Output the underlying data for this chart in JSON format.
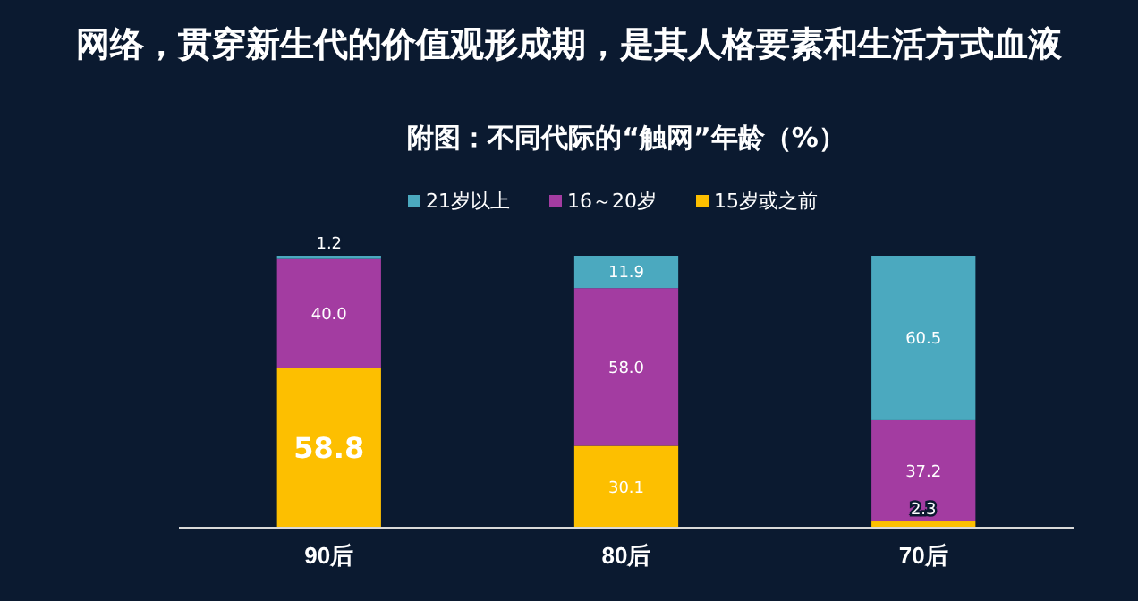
{
  "chart_data": {
    "type": "bar",
    "title": "网络，贯穿新生代的价值观形成期，是其人格要素和生活方式血液",
    "subtitle": "附图：不同代际的“触网”年龄（%）",
    "categories": [
      "90后",
      "80后",
      "70后"
    ],
    "stacked": true,
    "legend": "top",
    "series": [
      {
        "name": "15岁或之前",
        "color": "#fdbf00",
        "values": [
          58.8,
          30.1,
          2.3
        ],
        "value_labels": [
          "58.8",
          "30.1",
          "2.3"
        ]
      },
      {
        "name": "16～20岁",
        "color": "#a33ca1",
        "values": [
          40.0,
          58.0,
          37.2
        ],
        "value_labels": [
          "40.0",
          "58.0",
          "37.2"
        ]
      },
      {
        "name": "21岁以上",
        "color": "#4ba9bf",
        "values": [
          1.2,
          11.9,
          60.5
        ],
        "value_labels": [
          "1.2",
          "11.9",
          "60.5"
        ]
      }
    ]
  }
}
